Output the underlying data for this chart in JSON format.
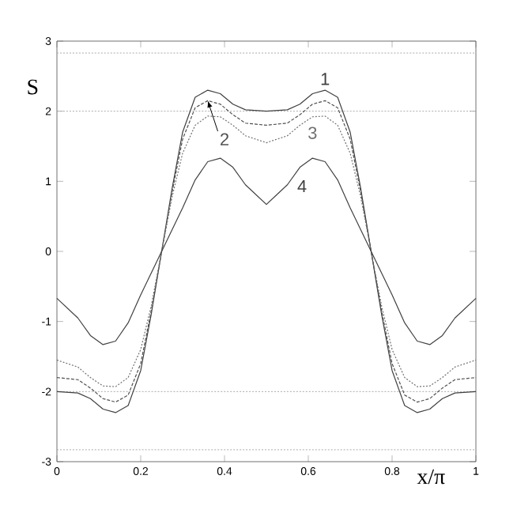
{
  "chart_data": {
    "type": "line",
    "xlabel": "x/π",
    "ylabel": "S",
    "x": [
      0,
      0.05,
      0.08,
      0.11,
      0.14,
      0.17,
      0.2,
      0.225,
      0.25,
      0.275,
      0.3,
      0.33,
      0.36,
      0.39,
      0.42,
      0.45,
      0.5,
      0.55,
      0.58,
      0.61,
      0.64,
      0.67,
      0.7,
      0.725,
      0.75,
      0.775,
      0.8,
      0.83,
      0.86,
      0.89,
      0.92,
      0.95,
      1
    ],
    "series": [
      {
        "name": "1",
        "color": "#404040",
        "line_style": "solid",
        "values": [
          -2.0,
          -2.02,
          -2.1,
          -2.25,
          -2.3,
          -2.2,
          -1.7,
          -0.9,
          0,
          0.9,
          1.7,
          2.2,
          2.3,
          2.25,
          2.1,
          2.02,
          2.0,
          2.02,
          2.1,
          2.25,
          2.3,
          2.2,
          1.7,
          0.9,
          0,
          -0.9,
          -1.7,
          -2.2,
          -2.3,
          -2.25,
          -2.1,
          -2.02,
          -2.0
        ]
      },
      {
        "name": "2",
        "color": "#505050",
        "line_style": "dashed",
        "values": [
          -1.8,
          -1.83,
          -1.95,
          -2.1,
          -2.15,
          -2.05,
          -1.6,
          -0.85,
          0,
          0.85,
          1.6,
          2.05,
          2.15,
          2.1,
          1.95,
          1.83,
          1.8,
          1.83,
          1.95,
          2.1,
          2.15,
          2.05,
          1.6,
          0.85,
          0,
          -0.85,
          -1.6,
          -2.05,
          -2.15,
          -2.1,
          -1.95,
          -1.83,
          -1.8
        ]
      },
      {
        "name": "3",
        "color": "#707070",
        "line_style": "dotted",
        "values": [
          -1.55,
          -1.65,
          -1.8,
          -1.92,
          -1.93,
          -1.8,
          -1.4,
          -0.78,
          0,
          0.78,
          1.4,
          1.8,
          1.93,
          1.92,
          1.8,
          1.65,
          1.55,
          1.65,
          1.8,
          1.92,
          1.93,
          1.8,
          1.4,
          0.78,
          0,
          -0.78,
          -1.4,
          -1.8,
          -1.93,
          -1.92,
          -1.8,
          -1.65,
          -1.55
        ]
      },
      {
        "name": "4",
        "color": "#404040",
        "line_style": "solid",
        "values": [
          -0.67,
          -0.95,
          -1.2,
          -1.33,
          -1.28,
          -1.02,
          -0.62,
          -0.31,
          0,
          0.31,
          0.62,
          1.02,
          1.28,
          1.33,
          1.2,
          0.95,
          0.67,
          0.95,
          1.2,
          1.33,
          1.28,
          1.02,
          0.62,
          0.31,
          0,
          -0.31,
          -0.62,
          -1.02,
          -1.28,
          -1.33,
          -1.2,
          -0.95,
          -0.67
        ]
      }
    ],
    "ref_lines": [
      {
        "axis": "y",
        "value": 2.83,
        "color": "#aaaaaa",
        "line_style": "dotted"
      },
      {
        "axis": "y",
        "value": 2,
        "color": "#aaaaaa",
        "line_style": "dotted"
      },
      {
        "axis": "y",
        "value": -2,
        "color": "#aaaaaa",
        "line_style": "dotted"
      },
      {
        "axis": "y",
        "value": -2.83,
        "color": "#aaaaaa",
        "line_style": "dotted"
      }
    ],
    "xlim": [
      0,
      1
    ],
    "ylim": [
      -3,
      3
    ],
    "xticks": [
      0,
      0.2,
      0.4,
      0.6,
      0.8,
      1
    ],
    "yticks": [
      -3,
      -2,
      -1,
      0,
      1,
      2,
      3
    ],
    "marker": "none"
  }
}
